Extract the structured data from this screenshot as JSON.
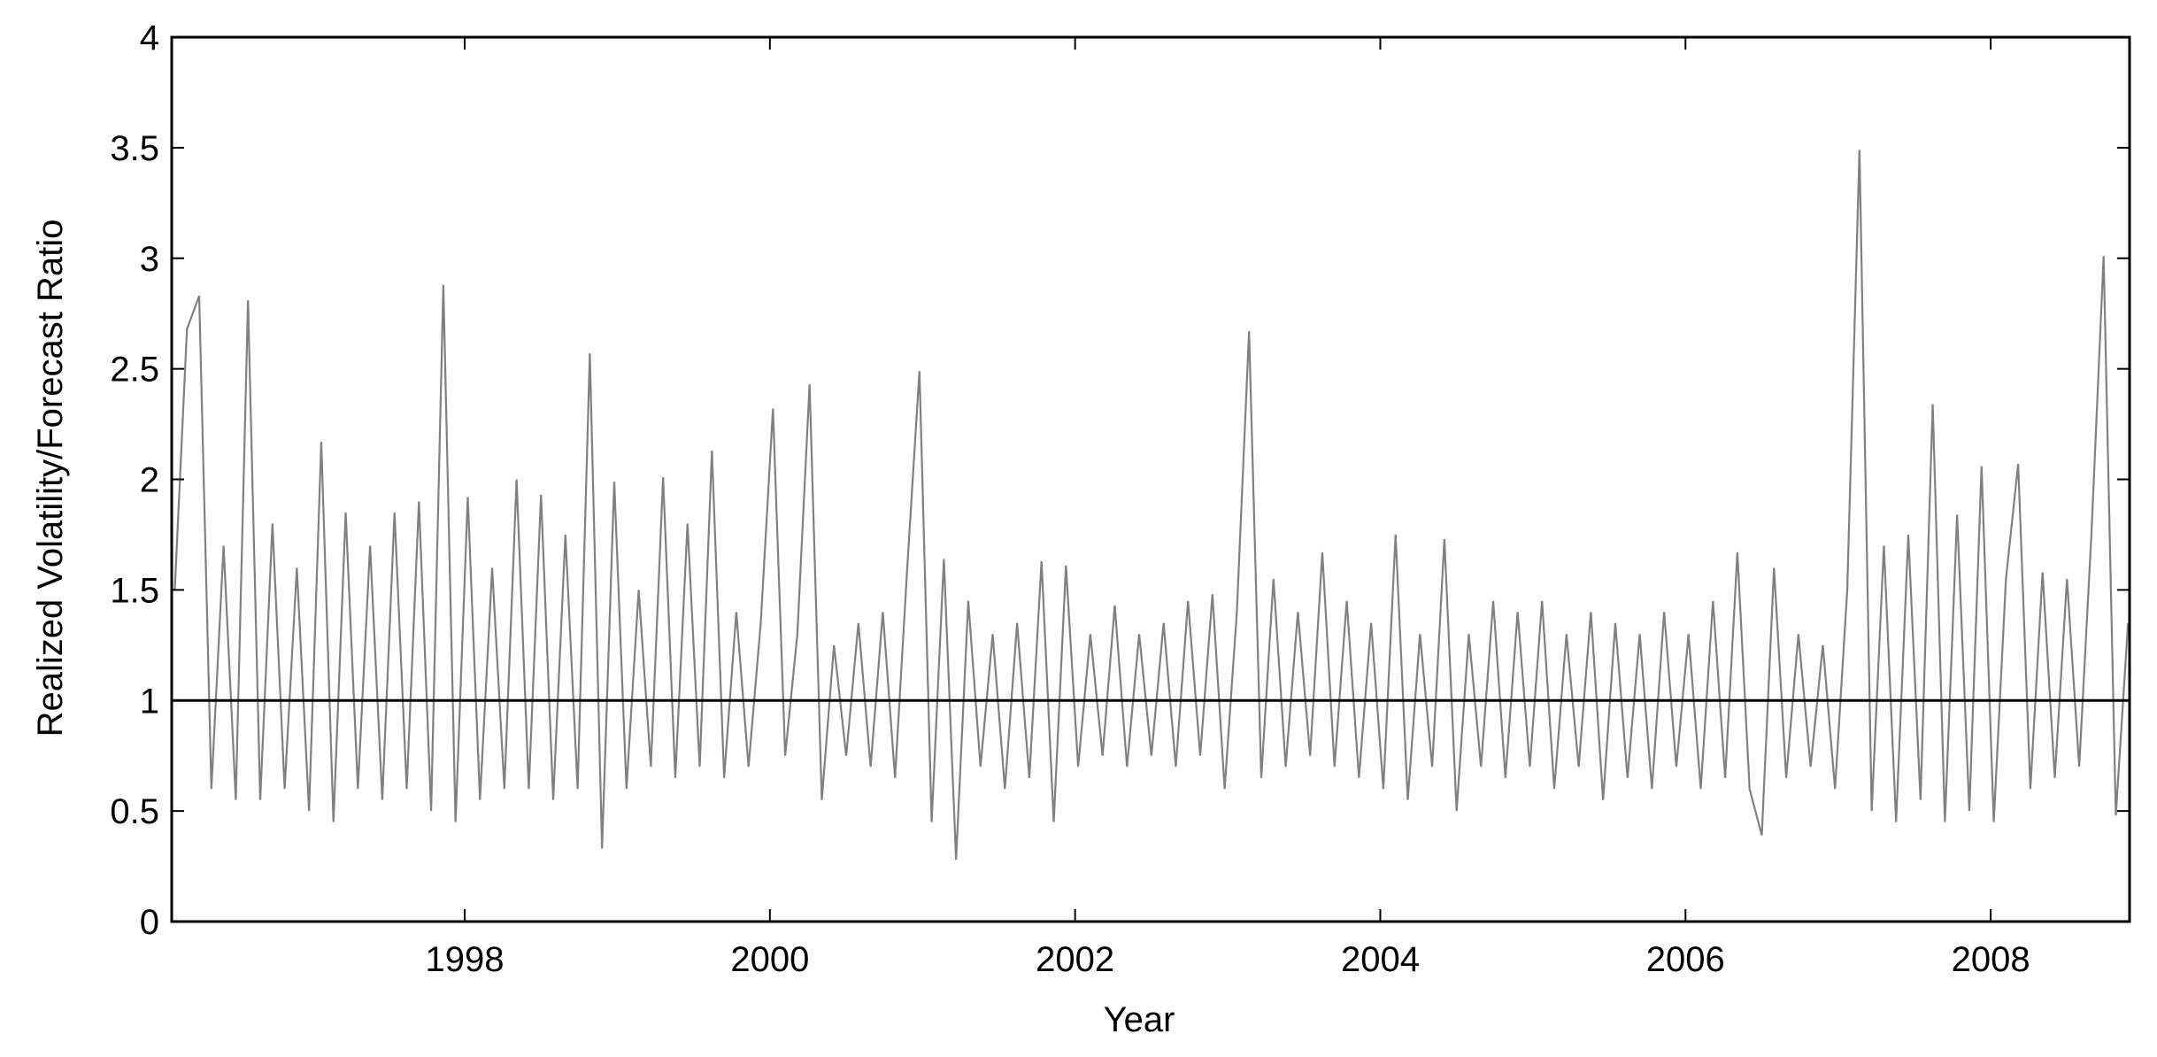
{
  "chart_data": {
    "type": "line",
    "xlabel": "Year",
    "ylabel": "Realized Volatility/Forecast Ratio",
    "xlim": [
      1996.08,
      2008.91
    ],
    "xticks": [
      1998,
      2000,
      2002,
      2004,
      2006,
      2008
    ],
    "ylim": [
      0,
      4
    ],
    "yticks": [
      0,
      0.5,
      1,
      1.5,
      2,
      2.5,
      3,
      3.5,
      4
    ],
    "hline": 1,
    "hline_color": "#000000",
    "series": [
      {
        "color": "#808080",
        "x": [
          1996.1,
          1996.18,
          1996.26,
          1996.34,
          1996.42,
          1996.5,
          1996.58,
          1996.66,
          1996.74,
          1996.82,
          1996.9,
          1996.98,
          1997.06,
          1997.14,
          1997.22,
          1997.3,
          1997.38,
          1997.46,
          1997.54,
          1997.62,
          1997.7,
          1997.78,
          1997.86,
          1997.94,
          1998.02,
          1998.1,
          1998.18,
          1998.26,
          1998.34,
          1998.42,
          1998.5,
          1998.58,
          1998.66,
          1998.74,
          1998.82,
          1998.9,
          1998.98,
          1999.06,
          1999.14,
          1999.22,
          1999.3,
          1999.38,
          1999.46,
          1999.54,
          1999.62,
          1999.7,
          1999.78,
          1999.86,
          1999.94,
          2000.02,
          2000.1,
          2000.18,
          2000.26,
          2000.34,
          2000.42,
          2000.5,
          2000.58,
          2000.66,
          2000.74,
          2000.82,
          2000.9,
          2000.98,
          2001.06,
          2001.14,
          2001.22,
          2001.3,
          2001.38,
          2001.46,
          2001.54,
          2001.62,
          2001.7,
          2001.78,
          2001.86,
          2001.94,
          2002.02,
          2002.1,
          2002.18,
          2002.26,
          2002.34,
          2002.42,
          2002.5,
          2002.58,
          2002.66,
          2002.74,
          2002.82,
          2002.9,
          2002.98,
          2003.06,
          2003.14,
          2003.22,
          2003.3,
          2003.38,
          2003.46,
          2003.54,
          2003.62,
          2003.7,
          2003.78,
          2003.86,
          2003.94,
          2004.02,
          2004.1,
          2004.18,
          2004.26,
          2004.34,
          2004.42,
          2004.5,
          2004.58,
          2004.66,
          2004.74,
          2004.82,
          2004.9,
          2004.98,
          2005.06,
          2005.14,
          2005.22,
          2005.3,
          2005.38,
          2005.46,
          2005.54,
          2005.62,
          2005.7,
          2005.78,
          2005.86,
          2005.94,
          2006.02,
          2006.1,
          2006.18,
          2006.26,
          2006.34,
          2006.42,
          2006.5,
          2006.58,
          2006.66,
          2006.74,
          2006.82,
          2006.9,
          2006.98,
          2007.06,
          2007.14,
          2007.22,
          2007.3,
          2007.38,
          2007.46,
          2007.54,
          2007.62,
          2007.7,
          2007.78,
          2007.86,
          2007.94,
          2008.02,
          2008.1,
          2008.18,
          2008.26,
          2008.34,
          2008.42,
          2008.5,
          2008.58,
          2008.66,
          2008.74,
          2008.82,
          2008.9
        ],
        "values": [
          1.5,
          2.68,
          2.83,
          0.6,
          1.7,
          0.55,
          2.81,
          0.55,
          1.8,
          0.6,
          1.6,
          0.5,
          2.17,
          0.45,
          1.85,
          0.6,
          1.7,
          0.55,
          1.85,
          0.6,
          1.9,
          0.5,
          2.88,
          0.45,
          1.92,
          0.55,
          1.6,
          0.6,
          2.0,
          0.6,
          1.93,
          0.55,
          1.75,
          0.6,
          2.57,
          0.33,
          1.99,
          0.6,
          1.5,
          0.7,
          2.01,
          0.65,
          1.8,
          0.7,
          2.13,
          0.65,
          1.4,
          0.7,
          1.35,
          2.32,
          0.75,
          1.3,
          2.43,
          0.55,
          1.25,
          0.75,
          1.35,
          0.7,
          1.4,
          0.65,
          1.6,
          2.49,
          0.45,
          1.64,
          0.28,
          1.45,
          0.7,
          1.3,
          0.6,
          1.35,
          0.65,
          1.63,
          0.45,
          1.61,
          0.7,
          1.3,
          0.75,
          1.43,
          0.7,
          1.3,
          0.75,
          1.35,
          0.7,
          1.45,
          0.75,
          1.48,
          0.6,
          1.4,
          2.67,
          0.65,
          1.55,
          0.7,
          1.4,
          0.75,
          1.67,
          0.7,
          1.45,
          0.65,
          1.35,
          0.6,
          1.75,
          0.55,
          1.3,
          0.7,
          1.73,
          0.5,
          1.3,
          0.7,
          1.45,
          0.65,
          1.4,
          0.7,
          1.45,
          0.6,
          1.3,
          0.7,
          1.4,
          0.55,
          1.35,
          0.65,
          1.3,
          0.6,
          1.4,
          0.7,
          1.3,
          0.6,
          1.45,
          0.65,
          1.67,
          0.6,
          0.39,
          1.6,
          0.65,
          1.3,
          0.7,
          1.25,
          0.6,
          1.5,
          3.49,
          0.5,
          1.7,
          0.45,
          1.75,
          0.55,
          2.34,
          0.45,
          1.84,
          0.5,
          2.06,
          0.45,
          1.55,
          2.07,
          0.6,
          1.58,
          0.65,
          1.55,
          0.7,
          1.75,
          3.01,
          0.48,
          1.35
        ]
      }
    ]
  }
}
